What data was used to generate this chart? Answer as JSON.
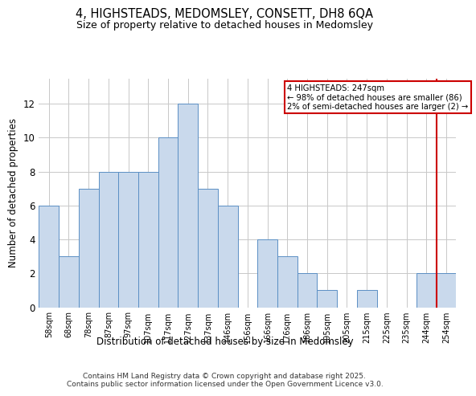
{
  "title1": "4, HIGHSTEADS, MEDOMSLEY, CONSETT, DH8 6QA",
  "title2": "Size of property relative to detached houses in Medomsley",
  "xlabel": "Distribution of detached houses by size in Medomsley",
  "ylabel": "Number of detached properties",
  "categories": [
    "58sqm",
    "68sqm",
    "78sqm",
    "87sqm",
    "97sqm",
    "107sqm",
    "117sqm",
    "127sqm",
    "137sqm",
    "146sqm",
    "156sqm",
    "166sqm",
    "176sqm",
    "186sqm",
    "195sqm",
    "205sqm",
    "215sqm",
    "225sqm",
    "235sqm",
    "244sqm",
    "254sqm"
  ],
  "values": [
    6,
    3,
    7,
    8,
    8,
    8,
    10,
    12,
    7,
    6,
    0,
    4,
    3,
    2,
    1,
    0,
    1,
    0,
    0,
    2,
    2
  ],
  "bar_color": "#c9d9ec",
  "bar_edge_color": "#5b8fc4",
  "red_line_x": 19.5,
  "annotation_title": "4 HIGHSTEADS: 247sqm",
  "annotation_line1": "← 98% of detached houses are smaller (86)",
  "annotation_line2": "2% of semi-detached houses are larger (2) →",
  "annotation_box_color": "#ffffff",
  "annotation_box_edge": "#cc0000",
  "red_line_color": "#cc0000",
  "grid_color": "#c8c8c8",
  "background_color": "#ffffff",
  "footer1": "Contains HM Land Registry data © Crown copyright and database right 2025.",
  "footer2": "Contains public sector information licensed under the Open Government Licence v3.0.",
  "yticks": [
    0,
    2,
    4,
    6,
    8,
    10,
    12
  ],
  "ylim_max": 13.5
}
